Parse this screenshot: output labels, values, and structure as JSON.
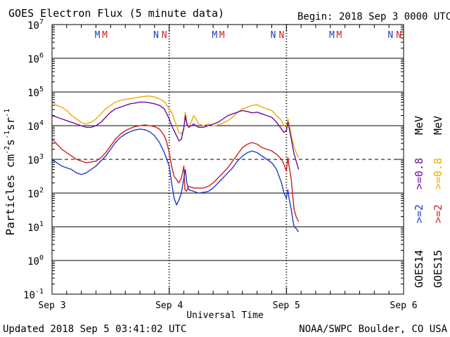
{
  "chart_data": {
    "type": "line",
    "title": "GOES Electron Flux (5 minute data)",
    "begin_label": "Begin: 2018 Sep 3 0000 UTC",
    "xlabel": "Universal Time",
    "ylabel_main": "Particles cm",
    "ylabel_exp1": "-2",
    "ylabel_mid1": "s",
    "ylabel_exp2": "-1",
    "ylabel_mid2": "sr",
    "ylabel_exp3": "-1",
    "x_range_hours": [
      0,
      72
    ],
    "y_log_range": [
      -1,
      7
    ],
    "x_ticks": [
      {
        "hour": 0,
        "label": "Sep 3"
      },
      {
        "hour": 24,
        "label": "Sep 4"
      },
      {
        "hour": 48,
        "label": "Sep 5"
      },
      {
        "hour": 72,
        "label": "Sep 6"
      }
    ],
    "y_ticks": [
      {
        "exp": -1,
        "base": "10",
        "sup": "-1"
      },
      {
        "exp": 0,
        "base": "10",
        "sup": "0"
      },
      {
        "exp": 1,
        "base": "10",
        "sup": "1"
      },
      {
        "exp": 2,
        "base": "10",
        "sup": "2"
      },
      {
        "exp": 3,
        "base": "10",
        "sup": "3"
      },
      {
        "exp": 4,
        "base": "10",
        "sup": "4"
      },
      {
        "exp": 5,
        "base": "10",
        "sup": "5"
      },
      {
        "exp": 6,
        "base": "10",
        "sup": "6"
      },
      {
        "exp": 7,
        "base": "10",
        "sup": "7"
      }
    ],
    "threshold_log": 3,
    "day_markers_hours": [
      24,
      48
    ],
    "markers": [
      {
        "hour": 9.3,
        "label": "M",
        "color": "#1a3cc8"
      },
      {
        "hour": 10.8,
        "label": "M",
        "color": "#d21e1e"
      },
      {
        "hour": 21.3,
        "label": "N",
        "color": "#1a3cc8"
      },
      {
        "hour": 23.0,
        "label": "N",
        "color": "#d21e1e"
      },
      {
        "hour": 33.3,
        "label": "M",
        "color": "#1a3cc8"
      },
      {
        "hour": 34.8,
        "label": "M",
        "color": "#d21e1e"
      },
      {
        "hour": 45.3,
        "label": "N",
        "color": "#1a3cc8"
      },
      {
        "hour": 47.0,
        "label": "N",
        "color": "#d21e1e"
      },
      {
        "hour": 57.3,
        "label": "M",
        "color": "#1a3cc8"
      },
      {
        "hour": 58.8,
        "label": "M",
        "color": "#d21e1e"
      },
      {
        "hour": 69.3,
        "label": "N",
        "color": "#1a3cc8"
      },
      {
        "hour": 71.0,
        "label": "N",
        "color": "#d21e1e"
      }
    ],
    "legend": {
      "goes15_label": "GOES15",
      "goes14_label": "GOES14",
      "mev_label": "MeV",
      "entries": [
        {
          "text": ">=2",
          "color": "#d21e1e"
        },
        {
          "text": ">=2",
          "color": "#1a3cc8"
        },
        {
          "text": ">=0.8",
          "color": "#f0a800"
        },
        {
          "text": ">=0.8",
          "color": "#6a0f9e"
        }
      ]
    },
    "series": [
      {
        "name": "GOES15 >=0.8 MeV",
        "color": "#f0a800",
        "points": [
          [
            0,
            4.7
          ],
          [
            1,
            4.6
          ],
          [
            2,
            4.55
          ],
          [
            3,
            4.45
          ],
          [
            4,
            4.3
          ],
          [
            5,
            4.2
          ],
          [
            6,
            4.1
          ],
          [
            7,
            4.05
          ],
          [
            8,
            4.1
          ],
          [
            9,
            4.2
          ],
          [
            10,
            4.35
          ],
          [
            11,
            4.5
          ],
          [
            12,
            4.6
          ],
          [
            13,
            4.7
          ],
          [
            14,
            4.75
          ],
          [
            15,
            4.78
          ],
          [
            16,
            4.8
          ],
          [
            17,
            4.82
          ],
          [
            18,
            4.85
          ],
          [
            19,
            4.87
          ],
          [
            20,
            4.88
          ],
          [
            21,
            4.85
          ],
          [
            22,
            4.8
          ],
          [
            23,
            4.72
          ],
          [
            23.5,
            4.6
          ],
          [
            24,
            4.5
          ],
          [
            24.5,
            4.4
          ],
          [
            25,
            4.2
          ],
          [
            25.5,
            4.0
          ],
          [
            26,
            3.8
          ],
          [
            26.5,
            3.75
          ],
          [
            27,
            3.9
          ],
          [
            27.3,
            4.4
          ],
          [
            27.6,
            4.1
          ],
          [
            28,
            3.98
          ],
          [
            28.5,
            4.1
          ],
          [
            29,
            4.3
          ],
          [
            29.5,
            4.2
          ],
          [
            30,
            4.05
          ],
          [
            31,
            4.0
          ],
          [
            32,
            4.05
          ],
          [
            33,
            4.0
          ],
          [
            34,
            4.02
          ],
          [
            35,
            4.08
          ],
          [
            36,
            4.15
          ],
          [
            37,
            4.25
          ],
          [
            38,
            4.4
          ],
          [
            39,
            4.5
          ],
          [
            40,
            4.55
          ],
          [
            41,
            4.6
          ],
          [
            42,
            4.62
          ],
          [
            43,
            4.55
          ],
          [
            44,
            4.5
          ],
          [
            45,
            4.45
          ],
          [
            46,
            4.3
          ],
          [
            47,
            4.15
          ],
          [
            47.5,
            4.0
          ],
          [
            48,
            3.95
          ],
          [
            48.3,
            4.2
          ],
          [
            48.6,
            4.05
          ],
          [
            49,
            3.7
          ],
          [
            49.5,
            3.4
          ],
          [
            50,
            3.2
          ],
          [
            50.5,
            3.05
          ]
        ]
      },
      {
        "name": "GOES14 >=0.8 MeV",
        "color": "#6a0f9e",
        "points": [
          [
            0,
            4.3
          ],
          [
            1,
            4.25
          ],
          [
            2,
            4.2
          ],
          [
            3,
            4.15
          ],
          [
            4,
            4.1
          ],
          [
            5,
            4.05
          ],
          [
            6,
            4.0
          ],
          [
            7,
            3.95
          ],
          [
            8,
            3.95
          ],
          [
            9,
            4.0
          ],
          [
            10,
            4.1
          ],
          [
            11,
            4.25
          ],
          [
            12,
            4.4
          ],
          [
            13,
            4.5
          ],
          [
            14,
            4.55
          ],
          [
            15,
            4.6
          ],
          [
            16,
            4.65
          ],
          [
            17,
            4.67
          ],
          [
            18,
            4.7
          ],
          [
            19,
            4.7
          ],
          [
            20,
            4.68
          ],
          [
            21,
            4.65
          ],
          [
            22,
            4.6
          ],
          [
            23,
            4.5
          ],
          [
            23.5,
            4.35
          ],
          [
            24,
            4.2
          ],
          [
            24.5,
            4.0
          ],
          [
            25,
            3.85
          ],
          [
            25.5,
            3.7
          ],
          [
            26,
            3.55
          ],
          [
            26.5,
            3.6
          ],
          [
            27,
            3.95
          ],
          [
            27.3,
            4.3
          ],
          [
            27.6,
            4.05
          ],
          [
            28,
            3.95
          ],
          [
            28.5,
            4.0
          ],
          [
            29,
            4.05
          ],
          [
            29.5,
            4.0
          ],
          [
            30,
            3.95
          ],
          [
            31,
            3.95
          ],
          [
            32,
            4.0
          ],
          [
            33,
            4.05
          ],
          [
            34,
            4.1
          ],
          [
            35,
            4.2
          ],
          [
            36,
            4.3
          ],
          [
            37,
            4.35
          ],
          [
            38,
            4.4
          ],
          [
            39,
            4.45
          ],
          [
            40,
            4.42
          ],
          [
            41,
            4.38
          ],
          [
            42,
            4.4
          ],
          [
            43,
            4.35
          ],
          [
            44,
            4.3
          ],
          [
            45,
            4.25
          ],
          [
            46,
            4.1
          ],
          [
            47,
            3.9
          ],
          [
            47.5,
            3.8
          ],
          [
            48,
            3.85
          ],
          [
            48.3,
            4.1
          ],
          [
            48.6,
            3.9
          ],
          [
            49,
            3.6
          ],
          [
            49.5,
            3.2
          ],
          [
            50,
            2.95
          ],
          [
            50.5,
            2.7
          ]
        ]
      },
      {
        "name": "GOES15 >=2 MeV",
        "color": "#d21e1e",
        "points": [
          [
            0,
            3.6
          ],
          [
            1,
            3.45
          ],
          [
            2,
            3.3
          ],
          [
            3,
            3.2
          ],
          [
            4,
            3.1
          ],
          [
            5,
            3.0
          ],
          [
            6,
            2.95
          ],
          [
            7,
            2.9
          ],
          [
            8,
            2.92
          ],
          [
            9,
            2.95
          ],
          [
            10,
            3.05
          ],
          [
            11,
            3.2
          ],
          [
            12,
            3.4
          ],
          [
            13,
            3.6
          ],
          [
            14,
            3.75
          ],
          [
            15,
            3.85
          ],
          [
            16,
            3.92
          ],
          [
            17,
            3.97
          ],
          [
            18,
            4.0
          ],
          [
            19,
            4.02
          ],
          [
            20,
            4.0
          ],
          [
            21,
            3.97
          ],
          [
            22,
            3.9
          ],
          [
            23,
            3.7
          ],
          [
            23.5,
            3.5
          ],
          [
            24,
            3.2
          ],
          [
            24.5,
            2.8
          ],
          [
            25,
            2.5
          ],
          [
            25.5,
            2.4
          ],
          [
            26,
            2.3
          ],
          [
            26.5,
            2.45
          ],
          [
            27,
            2.8
          ],
          [
            27.2,
            2.1
          ],
          [
            27.5,
            2.05
          ],
          [
            28,
            2.2
          ],
          [
            29,
            2.15
          ],
          [
            30,
            2.15
          ],
          [
            31,
            2.15
          ],
          [
            32,
            2.2
          ],
          [
            33,
            2.3
          ],
          [
            34,
            2.45
          ],
          [
            35,
            2.6
          ],
          [
            36,
            2.75
          ],
          [
            37,
            2.95
          ],
          [
            38,
            3.15
          ],
          [
            39,
            3.35
          ],
          [
            40,
            3.45
          ],
          [
            41,
            3.5
          ],
          [
            42,
            3.45
          ],
          [
            43,
            3.35
          ],
          [
            44,
            3.3
          ],
          [
            45,
            3.25
          ],
          [
            46,
            3.15
          ],
          [
            47,
            3.0
          ],
          [
            47.5,
            2.85
          ],
          [
            48,
            2.65
          ],
          [
            48.3,
            3.05
          ],
          [
            48.6,
            2.75
          ],
          [
            49,
            2.4
          ],
          [
            49.3,
            1.9
          ],
          [
            49.6,
            1.5
          ],
          [
            50,
            1.3
          ],
          [
            50.5,
            1.15
          ]
        ]
      },
      {
        "name": "GOES14 >=2 MeV",
        "color": "#1a3cc8",
        "points": [
          [
            0,
            3.0
          ],
          [
            1,
            2.9
          ],
          [
            2,
            2.8
          ],
          [
            3,
            2.75
          ],
          [
            4,
            2.7
          ],
          [
            5,
            2.6
          ],
          [
            6,
            2.55
          ],
          [
            7,
            2.6
          ],
          [
            8,
            2.7
          ],
          [
            9,
            2.8
          ],
          [
            10,
            2.95
          ],
          [
            11,
            3.1
          ],
          [
            12,
            3.3
          ],
          [
            13,
            3.5
          ],
          [
            14,
            3.65
          ],
          [
            15,
            3.75
          ],
          [
            16,
            3.82
          ],
          [
            17,
            3.87
          ],
          [
            18,
            3.9
          ],
          [
            19,
            3.88
          ],
          [
            20,
            3.82
          ],
          [
            21,
            3.7
          ],
          [
            22,
            3.5
          ],
          [
            23,
            3.2
          ],
          [
            23.5,
            3.0
          ],
          [
            24,
            2.8
          ],
          [
            24.5,
            2.3
          ],
          [
            25,
            1.85
          ],
          [
            25.5,
            1.65
          ],
          [
            26,
            1.8
          ],
          [
            26.5,
            2.0
          ],
          [
            27,
            2.45
          ],
          [
            27.3,
            2.7
          ],
          [
            27.6,
            2.3
          ],
          [
            28,
            2.1
          ],
          [
            29,
            2.05
          ],
          [
            30,
            2.0
          ],
          [
            31,
            2.02
          ],
          [
            32,
            2.05
          ],
          [
            33,
            2.15
          ],
          [
            34,
            2.3
          ],
          [
            35,
            2.45
          ],
          [
            36,
            2.6
          ],
          [
            37,
            2.75
          ],
          [
            38,
            2.95
          ],
          [
            39,
            3.1
          ],
          [
            40,
            3.2
          ],
          [
            41,
            3.25
          ],
          [
            42,
            3.2
          ],
          [
            43,
            3.1
          ],
          [
            44,
            3.0
          ],
          [
            45,
            2.9
          ],
          [
            46,
            2.7
          ],
          [
            47,
            2.3
          ],
          [
            47.5,
            2.0
          ],
          [
            48,
            1.85
          ],
          [
            48.3,
            2.1
          ],
          [
            48.6,
            1.8
          ],
          [
            49,
            1.5
          ],
          [
            49.3,
            1.2
          ],
          [
            49.6,
            1.0
          ],
          [
            50,
            0.95
          ],
          [
            50.5,
            0.85
          ]
        ]
      }
    ]
  },
  "footer": {
    "updated": "Updated 2018 Sep  5 03:41:02 UTC",
    "source": "NOAA/SWPC Boulder, CO USA"
  }
}
